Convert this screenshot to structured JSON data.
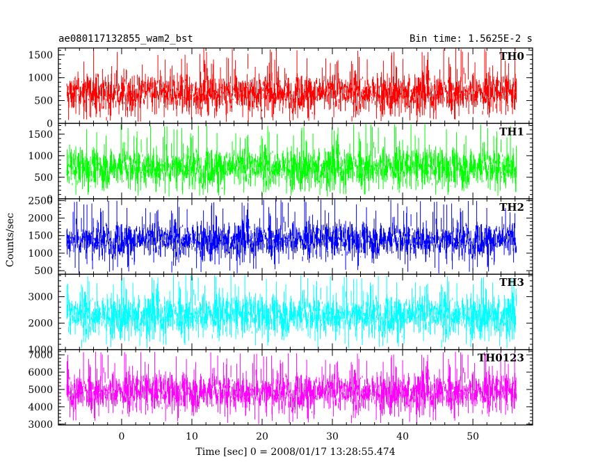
{
  "chart_data": {
    "type": "line",
    "title": "ae080117132855_wam2_bst",
    "subtitle": "Bin time: 1.5625E-2 s",
    "xlabel": "Time [sec] 0 = 2008/01/17 13:28:55.474",
    "ylabel": "Counts/sec",
    "xlim": [
      -9,
      58.5
    ],
    "x_data_range": [
      -7.8,
      56.2
    ],
    "xticks": [
      0,
      10,
      20,
      30,
      40,
      50
    ],
    "grid": false,
    "panels": [
      {
        "name": "TH0",
        "color": "#ff0000",
        "ylim": [
          0,
          1650
        ],
        "yticks": [
          0,
          500,
          1000,
          1500
        ],
        "typical_range": [
          230,
          1100
        ],
        "min": 30,
        "max": 1650
      },
      {
        "name": "TH1",
        "color": "#00ff00",
        "ylim": [
          0,
          1750
        ],
        "yticks": [
          0,
          500,
          1000,
          1500
        ],
        "typical_range": [
          250,
          1200
        ],
        "min": 50,
        "max": 1750
      },
      {
        "name": "TH2",
        "color": "#0000ff",
        "ylim": [
          400,
          2550
        ],
        "yticks": [
          500,
          1000,
          1500,
          2000,
          2500
        ],
        "typical_range": [
          850,
          1900
        ],
        "min": 420,
        "max": 2550
      },
      {
        "name": "TH3",
        "color": "#00ffff",
        "ylim": [
          1000,
          3850
        ],
        "yticks": [
          1000,
          2000,
          3000
        ],
        "typical_range": [
          1500,
          3100
        ],
        "min": 1050,
        "max": 3850
      },
      {
        "name": "TH0123",
        "color": "#ff00ff",
        "ylim": [
          2950,
          7300
        ],
        "yticks": [
          3000,
          4000,
          5000,
          6000,
          7000
        ],
        "typical_range": [
          3700,
          6000
        ],
        "min": 3000,
        "max": 7200
      }
    ]
  }
}
